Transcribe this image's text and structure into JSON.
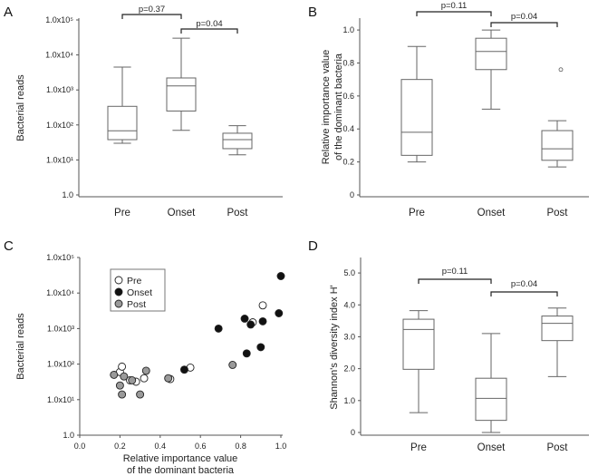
{
  "chart_data": [
    {
      "panel": "A",
      "type": "box",
      "ylabel": "Bacterial reads",
      "yscale": "log",
      "ylim": [
        1,
        100000
      ],
      "yticks": [
        1,
        10,
        100,
        1000,
        10000,
        100000
      ],
      "ytick_labels": [
        "1.0",
        "1.0x10¹",
        "1.0x10²",
        "1.0x10³",
        "1.0x10⁴",
        "1.0x10⁵"
      ],
      "categories": [
        "Pre",
        "Onset",
        "Post"
      ],
      "boxes": [
        {
          "whislo": 30,
          "q1": 38,
          "med": 68,
          "q3": 340,
          "whishi": 4500,
          "fliers": []
        },
        {
          "whislo": 70,
          "q1": 250,
          "med": 1300,
          "q3": 2200,
          "whishi": 30000,
          "fliers": []
        },
        {
          "whislo": 14,
          "q1": 21,
          "med": 38,
          "q3": 58,
          "whishi": 95,
          "fliers": []
        }
      ],
      "brackets": [
        {
          "from": 0,
          "to": 1,
          "label": "p=0.37"
        },
        {
          "from": 1,
          "to": 2,
          "label": "p=0.04"
        }
      ]
    },
    {
      "panel": "B",
      "type": "box",
      "ylabel_lines": [
        "Relative importance value",
        "of the dominant bacteria"
      ],
      "ylim": [
        0,
        1.05
      ],
      "yticks": [
        0,
        0.2,
        0.4,
        0.6,
        0.8,
        1.0
      ],
      "ytick_labels": [
        "0",
        "0.2",
        "0.4",
        "0.6",
        "0.8",
        "1.0"
      ],
      "categories": [
        "Pre",
        "Onset",
        "Post"
      ],
      "boxes": [
        {
          "whislo": 0.2,
          "q1": 0.24,
          "med": 0.38,
          "q3": 0.7,
          "whishi": 0.9,
          "fliers": []
        },
        {
          "whislo": 0.52,
          "q1": 0.76,
          "med": 0.87,
          "q3": 0.95,
          "whishi": 1.0,
          "fliers": []
        },
        {
          "whislo": 0.17,
          "q1": 0.21,
          "med": 0.28,
          "q3": 0.39,
          "whishi": 0.45,
          "fliers": [
            0.76
          ]
        }
      ],
      "brackets": [
        {
          "from": 0,
          "to": 1,
          "label": "p=0.11"
        },
        {
          "from": 1,
          "to": 2,
          "label": "p=0.04"
        }
      ]
    },
    {
      "panel": "C",
      "type": "scatter",
      "ylabel": "Bacterial reads",
      "xlabel_lines": [
        "Relative importance value",
        "of the dominant bacteria"
      ],
      "xlim": [
        0,
        1.0
      ],
      "xticks": [
        0,
        0.2,
        0.4,
        0.6,
        0.8,
        1.0
      ],
      "xtick_labels": [
        "0.0",
        "0.2",
        "0.4",
        "0.6",
        "0.8",
        "1.0"
      ],
      "yscale": "log",
      "ylim": [
        1,
        100000
      ],
      "yticks": [
        1,
        10,
        100,
        1000,
        10000,
        100000
      ],
      "ytick_labels": [
        "1.0",
        "1.0x10¹",
        "1.0x10²",
        "1.0x10³",
        "1.0x10⁴",
        "1.0x10⁵"
      ],
      "legend": [
        "Pre",
        "Onset",
        "Post"
      ],
      "series": [
        {
          "name": "Pre",
          "style": "white",
          "x": [
            0.2,
            0.21,
            0.25,
            0.28,
            0.32,
            0.45,
            0.55,
            0.86,
            0.91
          ],
          "y": [
            60,
            85,
            35,
            32,
            40,
            38,
            80,
            1500,
            4500
          ]
        },
        {
          "name": "Onset",
          "style": "black",
          "x": [
            0.52,
            0.69,
            0.82,
            0.83,
            0.85,
            0.9,
            0.91,
            0.99,
            1.0
          ],
          "y": [
            70,
            1000,
            1900,
            200,
            1300,
            300,
            1600,
            2700,
            30000
          ]
        },
        {
          "name": "Post",
          "style": "gray",
          "x": [
            0.17,
            0.2,
            0.21,
            0.22,
            0.26,
            0.3,
            0.33,
            0.44,
            0.76
          ],
          "y": [
            50,
            25,
            14,
            45,
            35,
            14,
            65,
            40,
            95
          ]
        }
      ]
    },
    {
      "panel": "D",
      "type": "box",
      "ylabel": "Shannon's diversity index H'",
      "ylim": [
        0,
        5.4
      ],
      "yticks": [
        0,
        1,
        2,
        3,
        4,
        5
      ],
      "ytick_labels": [
        "0",
        "1.0",
        "2.0",
        "3.0",
        "4.0",
        "5.0"
      ],
      "categories": [
        "Pre",
        "Onset",
        "Post"
      ],
      "boxes": [
        {
          "whislo": 0.62,
          "q1": 1.98,
          "med": 3.23,
          "q3": 3.55,
          "whishi": 3.82,
          "fliers": []
        },
        {
          "whislo": 0.0,
          "q1": 0.38,
          "med": 1.07,
          "q3": 1.7,
          "whishi": 3.1,
          "fliers": []
        },
        {
          "whislo": 1.75,
          "q1": 2.88,
          "med": 3.42,
          "q3": 3.65,
          "whishi": 3.9,
          "fliers": []
        }
      ],
      "brackets": [
        {
          "from": 0,
          "to": 1,
          "label": "p=0.11"
        },
        {
          "from": 1,
          "to": 2,
          "label": "p=0.04"
        }
      ]
    }
  ]
}
